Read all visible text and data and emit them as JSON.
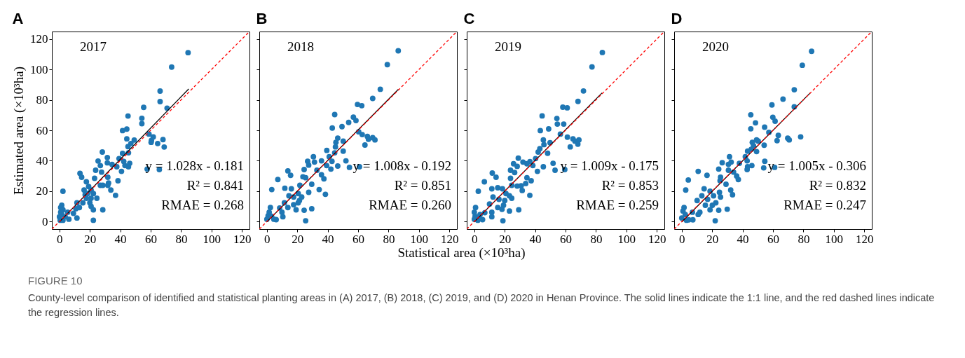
{
  "chart_data": [
    {
      "type": "scatter",
      "title": "A",
      "ylabel": "Estimated area (×10³ha)",
      "xlim": [
        -5,
        125
      ],
      "ylim": [
        -5,
        125
      ],
      "xticks": [
        0,
        20,
        40,
        60,
        80,
        100,
        120
      ],
      "yticks": [
        0,
        20,
        40,
        60,
        80,
        100,
        120
      ],
      "annotations": [
        "2017",
        "y = 1.028x - 0.181",
        "R² = 0.841",
        "RMAE = 0.268",
        "FIGURE 10",
        "County-level comparison of identified and statistical planting areas in (A) 2017, (B) 2018, (C) 2019, and (D) 2020 in Henan Province. The solid lines indicate the 1:1 line, and the red dashed lines indicate the regression lines."
      ],
      "series": [
        {
          "marker": "circle",
          "color": "#1f77b4",
          "x": [
            84.6,
            73.8,
            66.2,
            66.2,
            70.8,
            55.4,
            54.2,
            54.2,
            45.1,
            44.3,
            41.5,
            44.3,
            49.2,
            58.9,
            60.5,
            61.7,
            64.6,
            68.1,
            68.9,
            60.3,
            57.7,
            65.7,
            47,
            45.1,
            45.4,
            41.5,
            46.2,
            45.4,
            43.1,
            40.8,
            42.3,
            39.2,
            37.7,
            34.6,
            31.5,
            31.5,
            28.2,
            25.4,
            26.9,
            27.7,
            23.8,
            31.8,
            32.3,
            31.8,
            33.8,
            38.5,
            36.9,
            26.9,
            28.5,
            23.1,
            19.2,
            17.7,
            13.5,
            14.6,
            16.2,
            20.8,
            16.9,
            20.8,
            15.4,
            11.5,
            10.8,
            20.8,
            24.6,
            22.3,
            28.5,
            22.3,
            2.3,
            11.5,
            9.2,
            6.2,
            0.8,
            2.3,
            0.8,
            1.5,
            0,
            3.8,
            2.3,
            0.5,
            5.4,
            18.5,
            20,
            17.7,
            22.3,
            13.1,
            1.5
          ],
          "values": [
            111.1,
            101.6,
            85.8,
            78.9,
            74.6,
            75.1,
            67.9,
            64.4,
            69.4,
            60.8,
            59.8,
            54.4,
            53.6,
            57.5,
            53.3,
            55.6,
            51.3,
            53.9,
            49.0,
            52.1,
            34.5,
            34.2,
            51.3,
            49.3,
            45.2,
            44.8,
            38.3,
            36.0,
            36.8,
            33.0,
            39.5,
            41.4,
            36.0,
            37.5,
            42.1,
            38.6,
            45.7,
            39.8,
            36.8,
            32.5,
            33.7,
            29.1,
            25.3,
            23.8,
            20.7,
            26.8,
            17.2,
            23.8,
            23.8,
            28.4,
            23.0,
            26.1,
            31.7,
            29.1,
            20.7,
            20.7,
            17.6,
            15.3,
            12.3,
            12.3,
            8.4,
            10.0,
            15.3,
            7.7,
            7.7,
            0.8,
            19.9,
            2.3,
            5.4,
            1.5,
            9.2,
            7.7,
            6.1,
            4.6,
            3.1,
            3.1,
            0.8,
            0.8,
            6.1,
            18.4,
            12.3,
            15.3,
            18.4,
            9.2,
            10.7
          ]
        },
        {
          "type": "line",
          "color": "#000000",
          "line_style": "solid",
          "x": [
            0,
            85
          ],
          "values": [
            -0.2,
            87.2
          ]
        },
        {
          "type": "line",
          "color": "#ff0000",
          "line_style": "dashed",
          "x": [
            -5,
            125
          ],
          "values": [
            -5,
            125
          ]
        }
      ]
    },
    {
      "type": "scatter",
      "title": "B",
      "xlabel": "Statistical area (×10³ha)",
      "tick_labels": "x",
      "xlim": [
        -5,
        125
      ],
      "ylim": [
        -5,
        125
      ],
      "xticks": [
        0,
        20,
        40,
        60,
        80,
        100,
        120
      ],
      "yticks": [
        0,
        20,
        40,
        60,
        80,
        100,
        120
      ],
      "annotations": [
        "2018",
        "y = 1.008x - 0.192",
        "R² = 0.851",
        "RMAE = 0.260"
      ],
      "series": [
        {
          "marker": "circle",
          "color": "#1f77b4",
          "x": [
            86.4,
            79.2,
            74.6,
            69.6,
            59.6,
            62.4,
            44.6,
            56.9,
            58.6,
            53.8,
            49.4,
            43.0,
            60.4,
            62.7,
            66.1,
            66.8,
            69.6,
            71.1,
            64.5,
            46.6,
            50.2,
            45.4,
            45.1,
            44.6,
            50.2,
            39.4,
            41.0,
            42.8,
            52.0,
            54.3,
            60.9,
            46.6,
            42.1,
            39.3,
            35.9,
            30.6,
            31.3,
            26.8,
            27.5,
            24.5,
            32.9,
            35.9,
            37.5,
            23.7,
            25.5,
            13.8,
            15.6,
            7.2,
            29.5,
            27.5,
            34.4,
            38.5,
            21.7,
            16.1,
            11.8,
            3.2,
            20.6,
            17.6,
            14.5,
            21.4,
            17.6,
            11.5,
            19.2,
            24.5,
            29.5,
            25.5,
            13.8,
            9.9,
            10.5,
            6.1,
            2.3,
            1.5,
            0.8,
            3.1,
            0,
            4.6,
            8.4,
            20.6,
            22.9
          ],
          "values": [
            112.3,
            103.2,
            87.0,
            81.0,
            77.0,
            76.2,
            70.4,
            68.7,
            66.4,
            65.2,
            62.4,
            61.5,
            59.0,
            57.2,
            56.0,
            54.1,
            55.2,
            53.7,
            50.3,
            54.9,
            52.9,
            52.1,
            49.1,
            45.2,
            46.3,
            46.8,
            42.6,
            39.6,
            39.9,
            35.6,
            36.0,
            36.5,
            34.5,
            36.8,
            39.9,
            42.6,
            39.1,
            39.6,
            37.1,
            34.2,
            33.7,
            30.7,
            28.1,
            29.4,
            28.8,
            33.3,
            30.4,
            27.6,
            24.5,
            19.2,
            21.0,
            17.9,
            23.8,
            21.5,
            21.9,
            21.0,
            18.4,
            16.1,
            16.9,
            13.8,
            11.0,
            12.3,
            7.7,
            7.4,
            8.4,
            0.5,
            9.2,
            6.1,
            3.1,
            1.2,
            9.2,
            6.1,
            3.8,
            3.4,
            1.5,
            1.5,
            8.9,
            12.3,
            16.1
          ]
        },
        {
          "type": "line",
          "color": "#000000",
          "line_style": "solid",
          "x": [
            0,
            86.5
          ],
          "values": [
            -0.2,
            87.0
          ]
        },
        {
          "type": "line",
          "color": "#ff0000",
          "line_style": "dashed",
          "x": [
            -5,
            125
          ],
          "values": [
            -5,
            125
          ]
        }
      ]
    },
    {
      "type": "scatter",
      "title": "C",
      "tick_labels": "x",
      "xlim": [
        -5,
        125
      ],
      "ylim": [
        -5,
        125
      ],
      "xticks": [
        0,
        20,
        40,
        60,
        80,
        100,
        120
      ],
      "yticks": [
        0,
        20,
        40,
        60,
        80,
        100,
        120
      ],
      "annotations": [
        "2019",
        "y = 1.009x - 0.175",
        "R² = 0.853",
        "RMAE = 0.259"
      ],
      "series": [
        {
          "marker": "circle",
          "color": "#1f77b4",
          "x": [
            84.2,
            77.4,
            71.8,
            68.2,
            58.2,
            61.1,
            44.6,
            54.3,
            54.6,
            58.8,
            48.9,
            43.4,
            56.6,
            61.2,
            64.9,
            66.2,
            68.8,
            68.1,
            63.1,
            45.4,
            45.8,
            49.8,
            43.1,
            48.2,
            42.0,
            40.3,
            51.8,
            45.4,
            41.5,
            53.1,
            59.5,
            38.5,
            36.6,
            34.6,
            32.0,
            28.9,
            25.8,
            28.2,
            23.8,
            26.5,
            34.6,
            37.4,
            33.8,
            23.8,
            24.6,
            28.2,
            30.8,
            31.5,
            36.5,
            11.8,
            14.3,
            6.6,
            2.6,
            11.5,
            15.4,
            18.5,
            20.8,
            23.1,
            24.6,
            12.3,
            16.2,
            10.0,
            19.2,
            15.4,
            11.5,
            11.5,
            18.8,
            23.1,
            29.2,
            18.2,
            6.9,
            5.4,
            0.8,
            0,
            0.5,
            3.1,
            0,
            2.3,
            3.8,
            20.0
          ],
          "values": [
            111.2,
            101.7,
            85.9,
            79.0,
            75.2,
            74.8,
            69.5,
            67.8,
            64.1,
            64.1,
            60.9,
            59.8,
            57.5,
            55.5,
            54.4,
            52.9,
            53.7,
            50.9,
            49.1,
            53.7,
            50.6,
            51.8,
            47.9,
            44.9,
            45.7,
            41.4,
            38.3,
            36.0,
            33.0,
            33.7,
            34.2,
            36.8,
            39.4,
            38.0,
            39.1,
            41.7,
            38.0,
            36.3,
            33.7,
            32.2,
            28.8,
            26.8,
            25.0,
            28.4,
            23.8,
            23.3,
            23.5,
            20.4,
            17.2,
            31.9,
            29.1,
            26.1,
            19.9,
            21.5,
            22.2,
            21.5,
            18.4,
            16.9,
            15.3,
            16.1,
            14.6,
            11.5,
            10.7,
            9.2,
            6.1,
            3.1,
            0.5,
            6.9,
            7.7,
            8.0,
            5.8,
            1.2,
            9.2,
            6.1,
            3.4,
            3.1,
            1.5,
            0.8,
            4.6,
            13.8
          ]
        },
        {
          "type": "line",
          "color": "#000000",
          "line_style": "solid",
          "x": [
            0,
            84
          ],
          "values": [
            -0.2,
            84.6
          ]
        },
        {
          "type": "line",
          "color": "#ff0000",
          "line_style": "dashed",
          "x": [
            -5,
            125
          ],
          "values": [
            -5,
            125
          ]
        }
      ]
    },
    {
      "type": "scatter",
      "title": "D",
      "tick_labels": "x",
      "xlim": [
        -5,
        125
      ],
      "ylim": [
        -5,
        125
      ],
      "xticks": [
        0,
        20,
        40,
        60,
        80,
        100,
        120
      ],
      "yticks": [
        0,
        20,
        40,
        60,
        80,
        100,
        120
      ],
      "annotations": [
        "2020",
        "y = 1.005x - 0.306",
        "R² = 0.832",
        "RMAE = 0.247"
      ],
      "series": [
        {
          "marker": "circle",
          "color": "#1f77b4",
          "x": [
            85.4,
            79.3,
            74.0,
            66.6,
            74.0,
            59.3,
            45.4,
            59.9,
            61.4,
            48.5,
            45.4,
            54.5,
            57.3,
            63.5,
            62.7,
            69.7,
            70.7,
            78.2,
            46.4,
            49.2,
            50.3,
            47.2,
            54.2,
            49.2,
            45.7,
            43.3,
            41.8,
            43.0,
            54.6,
            61.1,
            53.9,
            46.1,
            43.3,
            43.0,
            37.9,
            32.5,
            31.4,
            30.7,
            26.6,
            24.3,
            30.7,
            34.1,
            36.1,
            37.2,
            25.5,
            25.2,
            10.8,
            16.6,
            4.3,
            2.6,
            29.1,
            32.2,
            33.4,
            24.8,
            25.5,
            14.7,
            18.6,
            20.9,
            13.2,
            10.1,
            17.0,
            20.1,
            15.5,
            11.9,
            10.8,
            18.6,
            24.3,
            29.9,
            22.0,
            7.0,
            4.6,
            7.3,
            1.5,
            0.8,
            2.3,
            0,
            3.1,
            22.4
          ],
          "values": [
            112.0,
            102.8,
            86.7,
            80.5,
            75.5,
            76.7,
            70.2,
            68.6,
            66.0,
            64.9,
            61.0,
            62.1,
            58.6,
            56.7,
            53.2,
            54.8,
            53.7,
            55.7,
            52.1,
            53.7,
            52.9,
            49.8,
            50.2,
            46.0,
            47.5,
            46.3,
            42.6,
            39.9,
            39.6,
            35.6,
            35.3,
            36.8,
            36.0,
            34.2,
            38.3,
            39.1,
            42.6,
            37.6,
            38.7,
            34.5,
            33.7,
            32.5,
            29.9,
            27.6,
            29.1,
            26.8,
            33.0,
            30.4,
            27.3,
            20.7,
            24.5,
            20.7,
            17.6,
            19.2,
            16.1,
            21.5,
            19.9,
            16.9,
            16.9,
            13.8,
            14.6,
            10.7,
            10.7,
            6.1,
            4.6,
            7.7,
            7.4,
            8.1,
            0.5,
            6.1,
            1.1,
            1.1,
            9.2,
            6.9,
            4.6,
            2.3,
            0.8,
            12.3
          ]
        },
        {
          "type": "line",
          "color": "#000000",
          "line_style": "solid",
          "x": [
            0,
            84.5
          ],
          "values": [
            -0.3,
            84.6
          ]
        },
        {
          "type": "line",
          "color": "#ff0000",
          "line_style": "dashed",
          "x": [
            -5,
            125
          ],
          "values": [
            -5,
            125
          ]
        }
      ]
    }
  ]
}
